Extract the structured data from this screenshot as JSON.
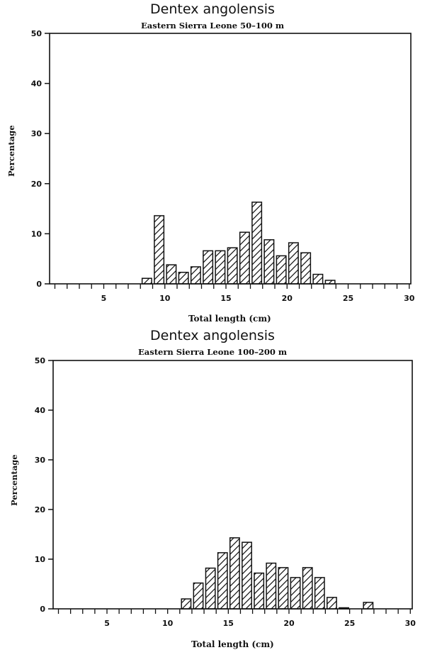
{
  "charts": [
    {
      "title": "Dentex angolensis",
      "subtitle": "Eastern Sierra Leone 50–100 m",
      "ylabel": "Percentage",
      "xlabel": "Total length (cm)"
    },
    {
      "title": "Dentex angolensis",
      "subtitle": "Eastern Sierra Leone 100–200 m",
      "ylabel": "Percentage",
      "xlabel": "Total length (cm)"
    }
  ],
  "chart_data": [
    {
      "type": "bar",
      "title": "Dentex angolensis",
      "subtitle": "Eastern Sierra Leone 50-100 m",
      "xlabel": "Total length (cm)",
      "ylabel": "Percentage",
      "ylim": [
        0,
        50
      ],
      "xlim": [
        0.5,
        30
      ],
      "yticks": [
        0,
        10,
        20,
        30,
        40,
        50
      ],
      "xticks_labeled": [
        5,
        10,
        15,
        20,
        25,
        30
      ],
      "x_minor_ticks_every": 1,
      "grid": false,
      "legend": null,
      "bar_fill": "diagonal hatch",
      "categories": [
        9,
        10,
        11,
        12,
        13,
        14,
        15,
        16,
        17,
        18,
        19,
        20,
        21,
        22,
        23,
        24
      ],
      "values": [
        1.1,
        13.6,
        3.8,
        2.3,
        3.4,
        6.6,
        6.6,
        7.2,
        10.3,
        16.3,
        8.8,
        5.6,
        8.2,
        6.2,
        1.9,
        0.7
      ]
    },
    {
      "type": "bar",
      "title": "Dentex angolensis",
      "subtitle": "Eastern Sierra Leone 100-200 m",
      "xlabel": "Total length (cm)",
      "ylabel": "Percentage",
      "ylim": [
        0,
        50
      ],
      "xlim": [
        0.5,
        30
      ],
      "yticks": [
        0,
        10,
        20,
        30,
        40,
        50
      ],
      "xticks_labeled": [
        5,
        10,
        15,
        20,
        25,
        30
      ],
      "x_minor_ticks_every": 1,
      "grid": false,
      "legend": null,
      "bar_fill": "diagonal hatch",
      "categories": [
        12,
        13,
        14,
        15,
        16,
        17,
        18,
        19,
        20,
        21,
        22,
        23,
        24,
        25,
        27
      ],
      "values": [
        2.0,
        5.2,
        8.2,
        11.3,
        14.3,
        13.4,
        7.2,
        9.2,
        8.3,
        6.3,
        8.3,
        6.3,
        2.3,
        0.2,
        1.3
      ]
    }
  ]
}
